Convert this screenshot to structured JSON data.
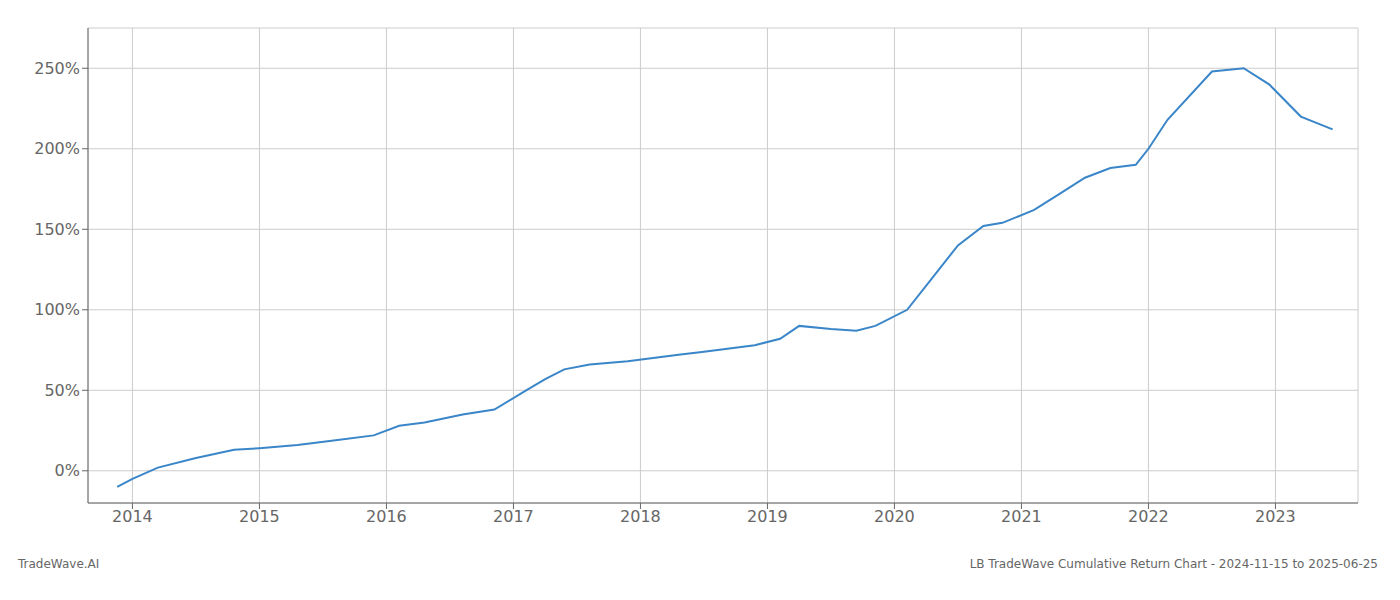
{
  "chart_data": {
    "type": "line",
    "annotations": [
      "TradeWave.AI",
      "LB TradeWave Cumulative Return Chart - 2024-11-15 to 2025-06-25"
    ],
    "x": [
      2013.88,
      2014.0,
      2014.2,
      2014.5,
      2014.8,
      2015.0,
      2015.3,
      2015.6,
      2015.9,
      2016.1,
      2016.3,
      2016.6,
      2016.85,
      2017.1,
      2017.25,
      2017.4,
      2017.6,
      2017.9,
      2018.1,
      2018.3,
      2018.5,
      2018.7,
      2018.9,
      2019.1,
      2019.25,
      2019.5,
      2019.7,
      2019.85,
      2020.1,
      2020.3,
      2020.5,
      2020.7,
      2020.85,
      2021.1,
      2021.3,
      2021.5,
      2021.7,
      2021.9,
      2022.0,
      2022.15,
      2022.5,
      2022.75,
      2022.95,
      2023.2,
      2023.45
    ],
    "values": [
      -10,
      -5,
      2,
      8,
      13,
      14,
      16,
      19,
      22,
      28,
      30,
      35,
      38,
      50,
      57,
      63,
      66,
      68,
      70,
      72,
      74,
      76,
      78,
      82,
      90,
      88,
      87,
      90,
      100,
      120,
      140,
      152,
      154,
      162,
      172,
      182,
      188,
      190,
      200,
      218,
      248,
      250,
      240,
      220,
      212
    ],
    "color": "#3a86c8",
    "xlim": [
      2013.65,
      2023.65
    ],
    "ylim": [
      -20,
      275
    ],
    "xticks": [
      2014,
      2015,
      2016,
      2017,
      2018,
      2019,
      2020,
      2021,
      2022,
      2023
    ],
    "yticks": [
      {
        "value": 0,
        "label": "0%"
      },
      {
        "value": 50,
        "label": "50%"
      },
      {
        "value": 100,
        "label": "100%"
      },
      {
        "value": 150,
        "label": "150%"
      },
      {
        "value": 200,
        "label": "200%"
      },
      {
        "value": 250,
        "label": "250%"
      }
    ],
    "grid": true
  }
}
